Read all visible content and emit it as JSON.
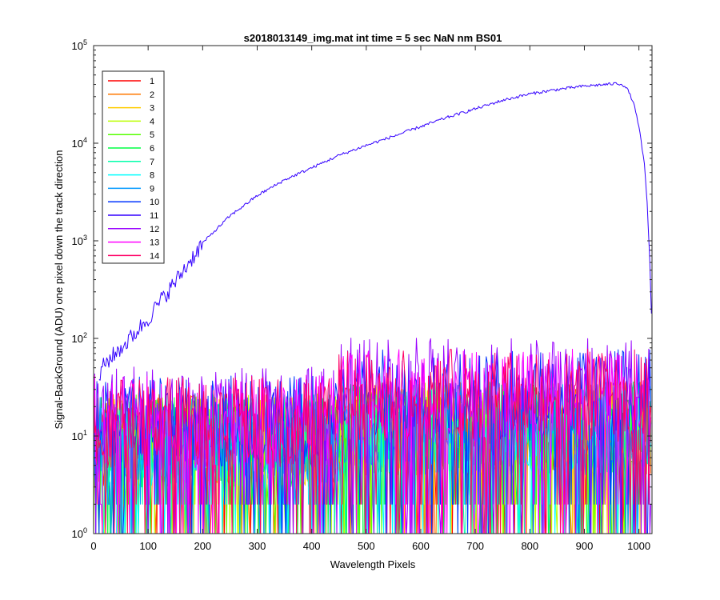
{
  "chart_data": {
    "type": "line",
    "title": "s2018013149_img.mat int time = 5 sec  NaN nm BS01",
    "xlabel": "Wavelength Pixels",
    "ylabel": "Signal-BackGround (ADU) one pixel down the track direction",
    "xlim": [
      0,
      1024
    ],
    "ylim": [
      1,
      100000
    ],
    "yscale": "log",
    "grid": false,
    "legend_position": "top-left",
    "x_ticks": [
      "0",
      "100",
      "200",
      "300",
      "400",
      "500",
      "600",
      "700",
      "800",
      "900",
      "1000"
    ],
    "x_tick_values": [
      0,
      100,
      200,
      300,
      400,
      500,
      600,
      700,
      800,
      900,
      1000
    ],
    "y_tick_values": [
      1,
      10,
      100,
      1000,
      10000,
      100000
    ],
    "y_tick_base": "10",
    "y_tick_exponents": [
      "0",
      "1",
      "2",
      "3",
      "4",
      "5"
    ],
    "series": [
      {
        "name": "1",
        "color": "#ff0000",
        "level": 0,
        "noise": true
      },
      {
        "name": "2",
        "color": "#ff7700",
        "level": 0,
        "noise": true
      },
      {
        "name": "3",
        "color": "#ffcc00",
        "level": 0,
        "noise": true
      },
      {
        "name": "4",
        "color": "#bbff00",
        "level": 0,
        "noise": true
      },
      {
        "name": "5",
        "color": "#55ff00",
        "level": 0,
        "noise": true
      },
      {
        "name": "6",
        "color": "#00ff44",
        "level": 0,
        "noise": true
      },
      {
        "name": "7",
        "color": "#00ffaa",
        "level": 0,
        "noise": true
      },
      {
        "name": "8",
        "color": "#00ffff",
        "level": 0,
        "noise": true
      },
      {
        "name": "9",
        "color": "#0099ff",
        "level": 0,
        "noise": true
      },
      {
        "name": "10",
        "color": "#0033ff",
        "level": 1,
        "noise": true
      },
      {
        "name": "11",
        "color": "#3300ff",
        "noise": false,
        "x": [
          10,
          20,
          30,
          40,
          50,
          60,
          80,
          100,
          120,
          150,
          200,
          250,
          300,
          350,
          400,
          450,
          500,
          550,
          600,
          650,
          700,
          750,
          800,
          850,
          900,
          940,
          960,
          970,
          980,
          990,
          1000,
          1010,
          1015,
          1020,
          1023
        ],
        "values": [
          40,
          55,
          62,
          70,
          80,
          90,
          120,
          160,
          230,
          380,
          950,
          1800,
          2900,
          4200,
          5600,
          7500,
          9500,
          11800,
          14800,
          18500,
          22500,
          27500,
          32000,
          35500,
          38500,
          40000,
          41000,
          40000,
          35000,
          26000,
          15000,
          6000,
          2500,
          600,
          180
        ]
      },
      {
        "name": "12",
        "color": "#9900ff",
        "level": 2,
        "noise": true
      },
      {
        "name": "13",
        "color": "#ff00ff",
        "level": 1,
        "noise": true
      },
      {
        "name": "14",
        "color": "#ff0066",
        "level": 1,
        "noise": true
      }
    ]
  }
}
